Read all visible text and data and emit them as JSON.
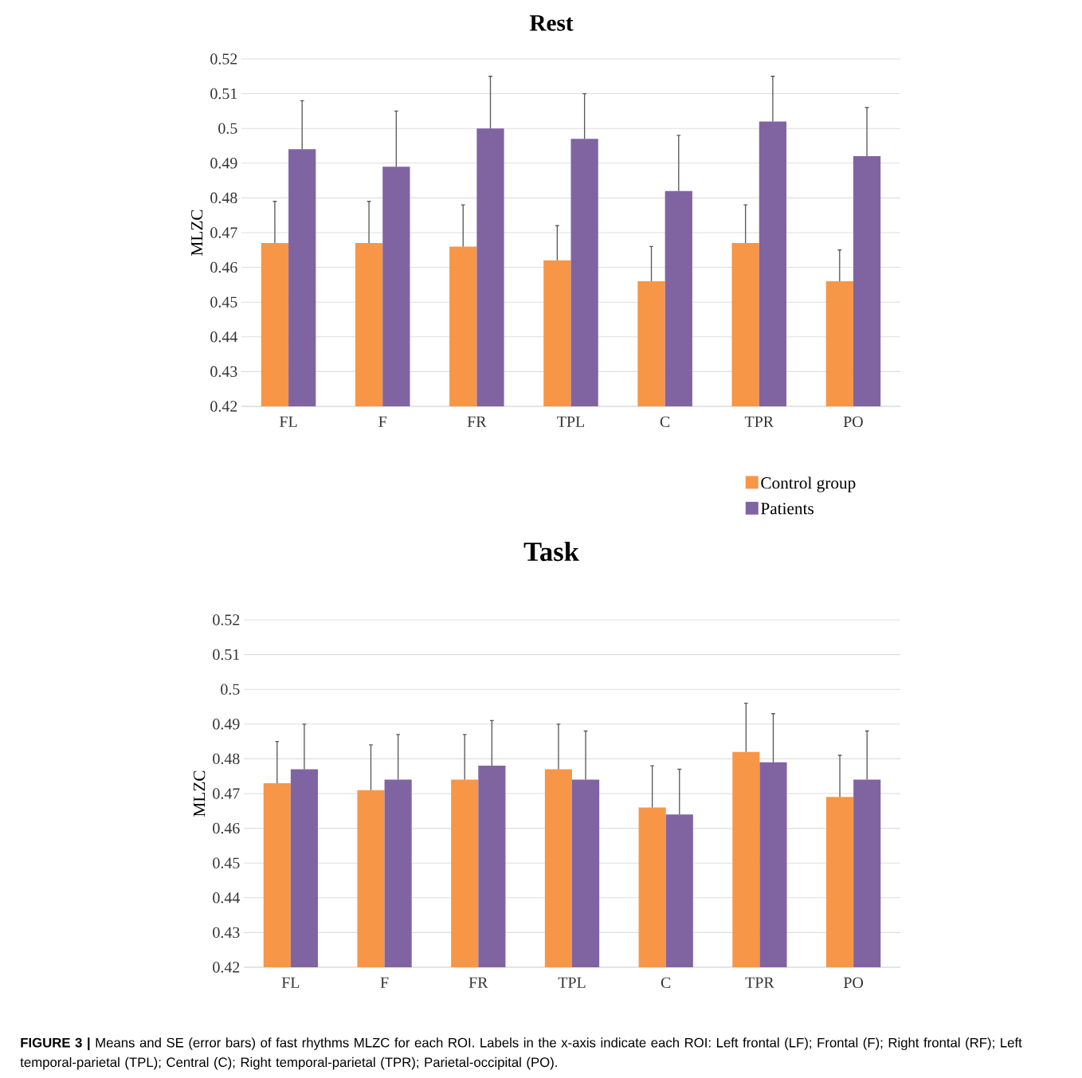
{
  "chart_data": [
    {
      "type": "bar",
      "title": "Rest",
      "ylabel": "MLZC",
      "categories": [
        "FL",
        "F",
        "FR",
        "TPL",
        "C",
        "TPR",
        "PO"
      ],
      "series": [
        {
          "name": "Control group",
          "color": "#f79646",
          "values": [
            0.467,
            0.467,
            0.466,
            0.462,
            0.456,
            0.467,
            0.456
          ],
          "errors": [
            [
              0.467,
              0.479
            ],
            [
              0.467,
              0.479
            ],
            [
              0.466,
              0.478
            ],
            [
              0.462,
              0.472
            ],
            [
              0.456,
              0.466
            ],
            [
              0.467,
              0.478
            ],
            [
              0.456,
              0.465
            ]
          ]
        },
        {
          "name": "Patients",
          "color": "#8064a2",
          "values": [
            0.494,
            0.489,
            0.5,
            0.497,
            0.482,
            0.502,
            0.492
          ],
          "errors": [
            [
              0.494,
              0.508
            ],
            [
              0.489,
              0.505
            ],
            [
              0.5,
              0.515
            ],
            [
              0.497,
              0.51
            ],
            [
              0.482,
              0.498
            ],
            [
              0.502,
              0.515
            ],
            [
              0.492,
              0.506
            ]
          ]
        }
      ],
      "ylim": [
        0.42,
        0.52
      ],
      "yticks": [
        0.42,
        0.43,
        0.44,
        0.45,
        0.46,
        0.47,
        0.48,
        0.49,
        0.5,
        0.51,
        0.52
      ],
      "grid": "y",
      "legend": "bottom right"
    },
    {
      "type": "bar",
      "title": "Task",
      "ylabel": "MLZC",
      "categories": [
        "FL",
        "F",
        "FR",
        "TPL",
        "C",
        "TPR",
        "PO"
      ],
      "series": [
        {
          "color": "#f79646",
          "values": [
            0.473,
            0.471,
            0.474,
            0.477,
            0.466,
            0.482,
            0.469
          ],
          "errors": [
            [
              0.473,
              0.485
            ],
            [
              0.471,
              0.484
            ],
            [
              0.474,
              0.487
            ],
            [
              0.477,
              0.49
            ],
            [
              0.466,
              0.478
            ],
            [
              0.482,
              0.496
            ],
            [
              0.469,
              0.481
            ]
          ]
        },
        {
          "color": "#8064a2",
          "values": [
            0.477,
            0.474,
            0.478,
            0.474,
            0.464,
            0.479,
            0.474
          ],
          "errors": [
            [
              0.477,
              0.49
            ],
            [
              0.474,
              0.487
            ],
            [
              0.478,
              0.491
            ],
            [
              0.474,
              0.488
            ],
            [
              0.464,
              0.477
            ],
            [
              0.479,
              0.493
            ],
            [
              0.474,
              0.488
            ]
          ]
        }
      ],
      "ylim": [
        0.42,
        0.52
      ],
      "yticks": [
        0.42,
        0.43,
        0.44,
        0.45,
        0.46,
        0.47,
        0.48,
        0.49,
        0.5,
        0.51,
        0.52
      ],
      "grid": "y",
      "legend": false,
      "annotations": [
        "**FIGURE 3 |** Means and SE (error bars) of fast rhythms MLZC for each ROI. Labels in the x-axis indicate each ROI: Left frontal (LF); Frontal (F); Right frontal (RF); Left temporal-parietal (TPL); Central (C); Right temporal-parietal (TPR); Parietal-occipital (PO)."
      ]
    }
  ]
}
